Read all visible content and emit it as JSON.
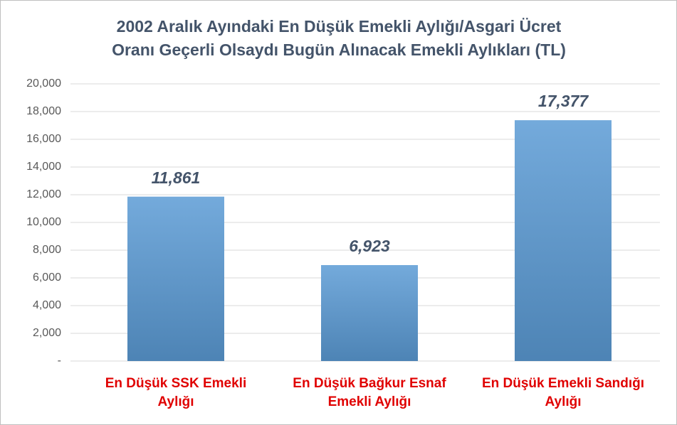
{
  "chart_data": {
    "type": "bar",
    "title": [
      "2002 Aralık Ayındaki En Düşük Emekli Aylığı/Asgari Ücret",
      "Oranı Geçerli Olsaydı Bugün Alınacak Emekli Aylıkları (TL)"
    ],
    "categories": [
      "En Düşük SSK Emekli Aylığı",
      "En Düşük Bağkur Esnaf Emekli Aylığı",
      "En Düşük Emekli Sandığı Aylığı"
    ],
    "values": [
      11861,
      6923,
      17377
    ],
    "value_labels": [
      "11,861",
      "6,923",
      "17,377"
    ],
    "color": "#5b9bd5",
    "ylim": [
      0,
      20000
    ],
    "yticks": [
      {
        "value": 0,
        "label": "-"
      },
      {
        "value": 2000,
        "label": "2,000"
      },
      {
        "value": 4000,
        "label": "4,000"
      },
      {
        "value": 6000,
        "label": "6,000"
      },
      {
        "value": 8000,
        "label": "8,000"
      },
      {
        "value": 10000,
        "label": "10,000"
      },
      {
        "value": 12000,
        "label": "12,000"
      },
      {
        "value": 14000,
        "label": "14,000"
      },
      {
        "value": 16000,
        "label": "16,000"
      },
      {
        "value": 18000,
        "label": "18,000"
      },
      {
        "value": 20000,
        "label": "20,000"
      }
    ],
    "grid": true
  }
}
